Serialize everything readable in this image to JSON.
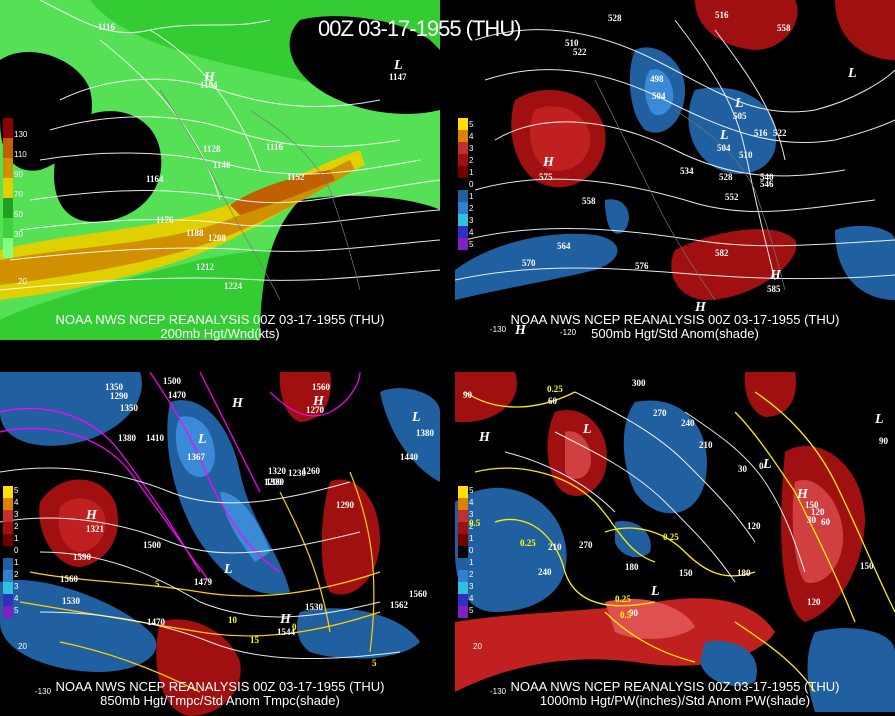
{
  "main_title": "00Z 03-17-1955 (THU)",
  "panels": [
    {
      "id": "200mb",
      "title_line1": "NOAA NWS NCEP REANALYSIS 00Z 03-17-1955 (THU)",
      "title_line2": "200mb Hgt/Wnd(kts)",
      "colorbar_labels": [
        "130",
        "110",
        "90",
        "70",
        "50",
        "30"
      ],
      "colorbar_colors": [
        "#8b0000",
        "#c06000",
        "#d09000",
        "#e0d000",
        "#20a020",
        "#40d040",
        "#80ff80"
      ],
      "height_labels": [
        "1116",
        "1104",
        "1128",
        "1140",
        "1116",
        "1164",
        "1152",
        "1176",
        "1188",
        "1208",
        "1212",
        "1224",
        "1147"
      ],
      "bottom_label": "20"
    },
    {
      "id": "500mb",
      "title_line1": "NOAA NWS NCEP REANALYSIS 00Z 03-17-1955 (THU)",
      "title_line2": "500mb Hgt/Std Anom(shade)",
      "colorbar_labels": [
        "5",
        "4",
        "3",
        "2",
        "1",
        "0",
        "1",
        "2",
        "3",
        "4",
        "5"
      ],
      "height_labels": [
        "528",
        "516",
        "558",
        "510",
        "522",
        "498",
        "504",
        "505",
        "504",
        "510",
        "516",
        "522",
        "534",
        "528",
        "540",
        "546",
        "552",
        "558",
        "564",
        "570",
        "576",
        "582",
        "575",
        "585"
      ],
      "bottom_labels": [
        "-130",
        "-120"
      ]
    },
    {
      "id": "850mb",
      "title_line1": "NOAA NWS NCEP REANALYSIS 00Z 03-17-1955 (THU)",
      "title_line2": "850mb Hgt/Tmpc/Std Anom Tmpc(shade)",
      "colorbar_labels": [
        "5",
        "4",
        "3",
        "2",
        "1",
        "0",
        "1",
        "2",
        "3",
        "4",
        "5"
      ],
      "height_labels": [
        "1350",
        "1500",
        "1290",
        "1470",
        "1350",
        "1560",
        "1410",
        "1380",
        "1367",
        "1320",
        "1260",
        "1270",
        "1440",
        "1380",
        "1200",
        "1230",
        "1290",
        "1590",
        "1500",
        "1560",
        "1530",
        "1479",
        "1470",
        "1544",
        "1560",
        "1562",
        "1330",
        "1321",
        "1530"
      ],
      "temp_labels": [
        "5",
        "10",
        "15",
        "0",
        "5"
      ],
      "bottom_labels": [
        "-130",
        "20"
      ]
    },
    {
      "id": "1000mb",
      "title_line1": "NOAA NWS NCEP REANALYSIS 00Z 03-17-1955 (THU)",
      "title_line2": "1000mb Hgt/PW(inches)/Std Anom PW(shade)",
      "colorbar_labels": [
        "5",
        "4",
        "3",
        "2",
        "1",
        "0",
        "1",
        "2",
        "3",
        "4",
        "5"
      ],
      "height_labels": [
        "90",
        "60",
        "300",
        "270",
        "240",
        "210",
        "180",
        "150",
        "120",
        "90",
        "60",
        "30",
        "0",
        "30",
        "60",
        "90",
        "120",
        "150",
        "180",
        "210",
        "240",
        "270",
        "150",
        "180",
        "150",
        "120"
      ],
      "pw_labels": [
        "0.25",
        "0.5",
        "0.25",
        "0.25",
        "0.25",
        "0.5"
      ],
      "bottom_labels": [
        "-130",
        "20"
      ]
    }
  ]
}
